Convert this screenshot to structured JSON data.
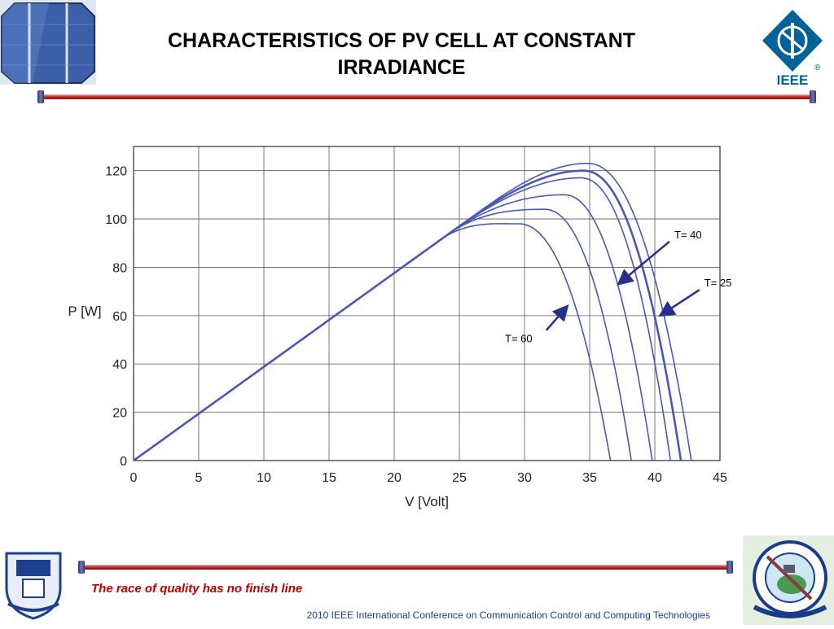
{
  "slide": {
    "title": "CHARACTERISTICS OF PV CELL AT CONSTANT IRRADIANCE",
    "tagline": "The race of quality has no finish line",
    "conference": "2010 IEEE International Conference on Communication Control and Computing Technologies",
    "ieee_logo_text": "IEEE",
    "registered_mark": "®"
  },
  "colors": {
    "curve": "#4b57b5",
    "arrow": "#2a2f8c",
    "divider_red": "#c0262a",
    "tagline": "#c00000",
    "ieee_blue": "#00629b"
  },
  "chart_data": {
    "type": "line",
    "title": "",
    "xlabel": "V [Volt]",
    "ylabel": "P [W]",
    "xlim": [
      0,
      45
    ],
    "ylim": [
      0,
      130
    ],
    "xticks": [
      0,
      5,
      10,
      15,
      20,
      25,
      30,
      35,
      40,
      45
    ],
    "yticks": [
      0,
      20,
      40,
      60,
      80,
      100,
      120
    ],
    "grid": true,
    "slope_w_per_v": 3.88,
    "series": [
      {
        "peak_v": 34.8,
        "peak_p": 123,
        "voc": 42.8
      },
      {
        "peak_v": 34.5,
        "peak_p": 120,
        "voc": 42.0
      },
      {
        "peak_v": 34.3,
        "peak_p": 117,
        "voc": 41.2
      },
      {
        "peak_v": 33.0,
        "peak_p": 110,
        "voc": 39.8
      },
      {
        "peak_v": 31.5,
        "peak_p": 104,
        "voc": 38.2
      },
      {
        "peak_v": 29.5,
        "peak_p": 98,
        "voc": 36.6
      }
    ],
    "annotations": [
      {
        "text": "T= 40",
        "x": 41.5,
        "y": 92,
        "arrow_to": [
          37.2,
          73
        ]
      },
      {
        "text": "T= 25",
        "x": 43.8,
        "y": 72,
        "arrow_to": [
          40.4,
          60
        ]
      },
      {
        "text": "T= 60",
        "x": 28.5,
        "y": 49,
        "arrow_to": [
          33.3,
          64
        ]
      }
    ]
  }
}
